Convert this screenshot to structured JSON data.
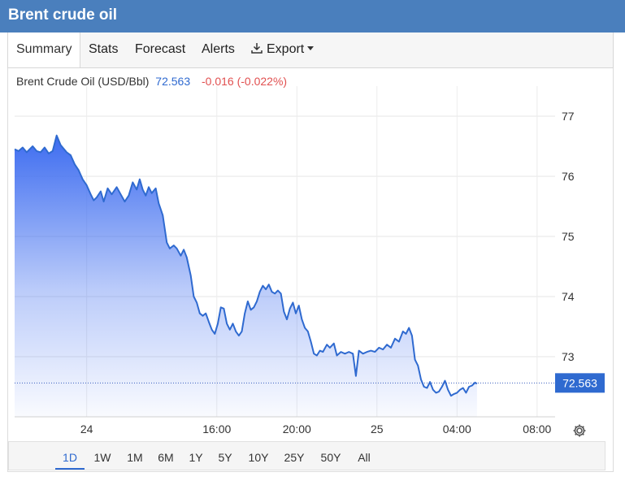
{
  "header": {
    "title": "Brent crude oil"
  },
  "tabs": [
    {
      "label": "Summary",
      "active": true
    },
    {
      "label": "Stats"
    },
    {
      "label": "Forecast"
    },
    {
      "label": "Alerts"
    },
    {
      "label": "Export",
      "icon": "download-icon",
      "has_dropdown": true
    }
  ],
  "legend": {
    "instrument": "Brent Crude Oil (USD/Bbl)",
    "price": "72.563",
    "change": "-0.016 (-0.022%)"
  },
  "ranges": [
    {
      "label": "1D",
      "active": true
    },
    {
      "label": "1W"
    },
    {
      "label": "1M"
    },
    {
      "label": "6M"
    },
    {
      "label": "1Y"
    },
    {
      "label": "5Y"
    },
    {
      "label": "10Y"
    },
    {
      "label": "25Y"
    },
    {
      "label": "50Y"
    },
    {
      "label": "All"
    }
  ],
  "settings_icon": "gear-icon",
  "colors": {
    "header_bg": "#4a7fbd",
    "line": "#2f6ad0",
    "area_top": "#3d6cf0",
    "price_label_bg": "#2f6ad0",
    "negative": "#e15050"
  },
  "chart_data": {
    "type": "area",
    "title": "",
    "ylim": [
      72.0,
      77.5
    ],
    "y_ticks": [
      73,
      74,
      75,
      76,
      77
    ],
    "x_ticks": [
      {
        "label": "24",
        "t": 9.5
      },
      {
        "label": "16:00",
        "t": 16
      },
      {
        "label": "20:00",
        "t": 20
      },
      {
        "label": "25",
        "t": 24
      },
      {
        "label": "04:00",
        "t": 28
      },
      {
        "label": "08:00",
        "t": 32
      }
    ],
    "xlim": [
      5.9,
      32.9
    ],
    "last_value": 72.563,
    "series": [
      {
        "points": [
          [
            5.9,
            76.45
          ],
          [
            6.1,
            76.42
          ],
          [
            6.3,
            76.48
          ],
          [
            6.5,
            76.4
          ],
          [
            6.8,
            76.5
          ],
          [
            7.0,
            76.42
          ],
          [
            7.2,
            76.4
          ],
          [
            7.4,
            76.48
          ],
          [
            7.6,
            76.38
          ],
          [
            7.8,
            76.42
          ],
          [
            8.0,
            76.68
          ],
          [
            8.2,
            76.52
          ],
          [
            8.5,
            76.4
          ],
          [
            8.7,
            76.35
          ],
          [
            8.9,
            76.2
          ],
          [
            9.1,
            76.1
          ],
          [
            9.3,
            75.95
          ],
          [
            9.5,
            75.85
          ],
          [
            9.7,
            75.7
          ],
          [
            9.85,
            75.6
          ],
          [
            10.0,
            75.65
          ],
          [
            10.2,
            75.75
          ],
          [
            10.35,
            75.58
          ],
          [
            10.55,
            75.8
          ],
          [
            10.75,
            75.7
          ],
          [
            11.0,
            75.82
          ],
          [
            11.2,
            75.7
          ],
          [
            11.4,
            75.58
          ],
          [
            11.6,
            75.68
          ],
          [
            11.8,
            75.9
          ],
          [
            12.0,
            75.78
          ],
          [
            12.15,
            75.95
          ],
          [
            12.3,
            75.78
          ],
          [
            12.45,
            75.68
          ],
          [
            12.6,
            75.82
          ],
          [
            12.75,
            75.72
          ],
          [
            12.95,
            75.8
          ],
          [
            13.1,
            75.55
          ],
          [
            13.3,
            75.35
          ],
          [
            13.5,
            74.9
          ],
          [
            13.65,
            74.8
          ],
          [
            13.85,
            74.85
          ],
          [
            14.0,
            74.8
          ],
          [
            14.2,
            74.68
          ],
          [
            14.35,
            74.78
          ],
          [
            14.5,
            74.65
          ],
          [
            14.7,
            74.35
          ],
          [
            14.85,
            74.0
          ],
          [
            15.0,
            73.9
          ],
          [
            15.15,
            73.72
          ],
          [
            15.3,
            73.68
          ],
          [
            15.45,
            73.72
          ],
          [
            15.6,
            73.58
          ],
          [
            15.75,
            73.45
          ],
          [
            15.9,
            73.38
          ],
          [
            16.05,
            73.55
          ],
          [
            16.2,
            73.82
          ],
          [
            16.35,
            73.8
          ],
          [
            16.5,
            73.55
          ],
          [
            16.65,
            73.45
          ],
          [
            16.8,
            73.55
          ],
          [
            16.95,
            73.42
          ],
          [
            17.1,
            73.35
          ],
          [
            17.25,
            73.42
          ],
          [
            17.4,
            73.72
          ],
          [
            17.55,
            73.92
          ],
          [
            17.7,
            73.78
          ],
          [
            17.85,
            73.82
          ],
          [
            18.0,
            73.92
          ],
          [
            18.15,
            74.08
          ],
          [
            18.3,
            74.18
          ],
          [
            18.45,
            74.12
          ],
          [
            18.6,
            74.2
          ],
          [
            18.75,
            74.08
          ],
          [
            18.9,
            74.05
          ],
          [
            19.05,
            74.1
          ],
          [
            19.2,
            74.05
          ],
          [
            19.35,
            73.75
          ],
          [
            19.5,
            73.62
          ],
          [
            19.65,
            73.8
          ],
          [
            19.8,
            73.9
          ],
          [
            19.95,
            73.72
          ],
          [
            20.1,
            73.85
          ],
          [
            20.25,
            73.62
          ],
          [
            20.4,
            73.48
          ],
          [
            20.55,
            73.42
          ],
          [
            20.7,
            73.25
          ],
          [
            20.85,
            73.05
          ],
          [
            21.0,
            73.02
          ],
          [
            21.15,
            73.1
          ],
          [
            21.3,
            73.08
          ],
          [
            21.5,
            73.2
          ],
          [
            21.65,
            73.15
          ],
          [
            21.85,
            73.22
          ],
          [
            22.0,
            73.02
          ],
          [
            22.2,
            73.08
          ],
          [
            22.4,
            73.05
          ],
          [
            22.6,
            73.08
          ],
          [
            22.8,
            73.05
          ],
          [
            22.95,
            72.68
          ],
          [
            23.1,
            73.1
          ],
          [
            23.3,
            73.05
          ],
          [
            23.5,
            73.08
          ],
          [
            23.7,
            73.1
          ],
          [
            23.9,
            73.08
          ],
          [
            24.1,
            73.15
          ],
          [
            24.3,
            73.12
          ],
          [
            24.5,
            73.2
          ],
          [
            24.7,
            73.15
          ],
          [
            24.9,
            73.3
          ],
          [
            25.1,
            73.25
          ],
          [
            25.3,
            73.42
          ],
          [
            25.45,
            73.38
          ],
          [
            25.6,
            73.48
          ],
          [
            25.75,
            73.35
          ],
          [
            25.9,
            72.95
          ],
          [
            26.05,
            72.85
          ],
          [
            26.2,
            72.62
          ],
          [
            26.35,
            72.5
          ],
          [
            26.5,
            72.48
          ],
          [
            26.65,
            72.58
          ],
          [
            26.8,
            72.45
          ],
          [
            26.95,
            72.4
          ],
          [
            27.1,
            72.42
          ],
          [
            27.25,
            72.5
          ],
          [
            27.4,
            72.6
          ],
          [
            27.55,
            72.45
          ],
          [
            27.7,
            72.35
          ],
          [
            27.85,
            72.38
          ],
          [
            28.0,
            72.4
          ],
          [
            28.15,
            72.45
          ],
          [
            28.3,
            72.48
          ],
          [
            28.45,
            72.4
          ],
          [
            28.6,
            72.5
          ],
          [
            28.75,
            72.52
          ],
          [
            28.9,
            72.57
          ],
          [
            29.0,
            72.55
          ]
        ]
      }
    ]
  }
}
